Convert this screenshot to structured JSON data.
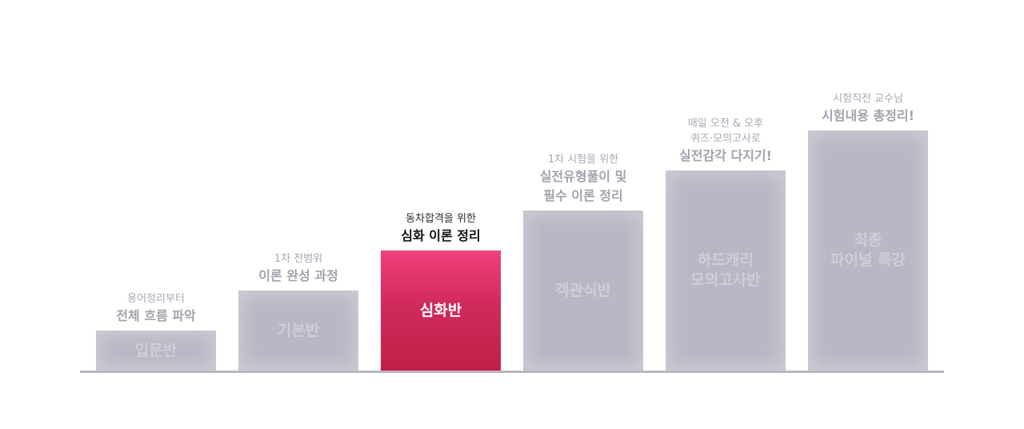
{
  "chart_data": {
    "type": "bar",
    "categories": [
      "입문반",
      "기본반",
      "심화반",
      "객관식반",
      "하드캐리\n모의고사반",
      "최종\n파이널 특강"
    ],
    "values": [
      1,
      2,
      3,
      4,
      5,
      6
    ],
    "ylim": [
      0,
      6
    ],
    "grid": false,
    "highlight_index": 2,
    "colors": {
      "bar": "#b9b7c4",
      "highlight_top": "#f0407a",
      "highlight_bottom": "#c21f47",
      "baseline": "#b9b7c4"
    },
    "captions": [
      {
        "sub": "용어정리부터",
        "main": "전체 흐름 파악"
      },
      {
        "sub": "1차 전범위",
        "main": "이론 완성 과정"
      },
      {
        "sub": "동차합격을 위한",
        "main": "심화 이론 정리"
      },
      {
        "sub": "1차 시험을 위한",
        "main": "실전유형풀이 및\n필수 이론 정리"
      },
      {
        "sub": "매일 오전 & 오후\n퀴즈·모의고사로",
        "main": "실전감각 다지기!"
      },
      {
        "sub": "시험직전 교수님",
        "main": "시험내용 총정리!"
      }
    ]
  }
}
